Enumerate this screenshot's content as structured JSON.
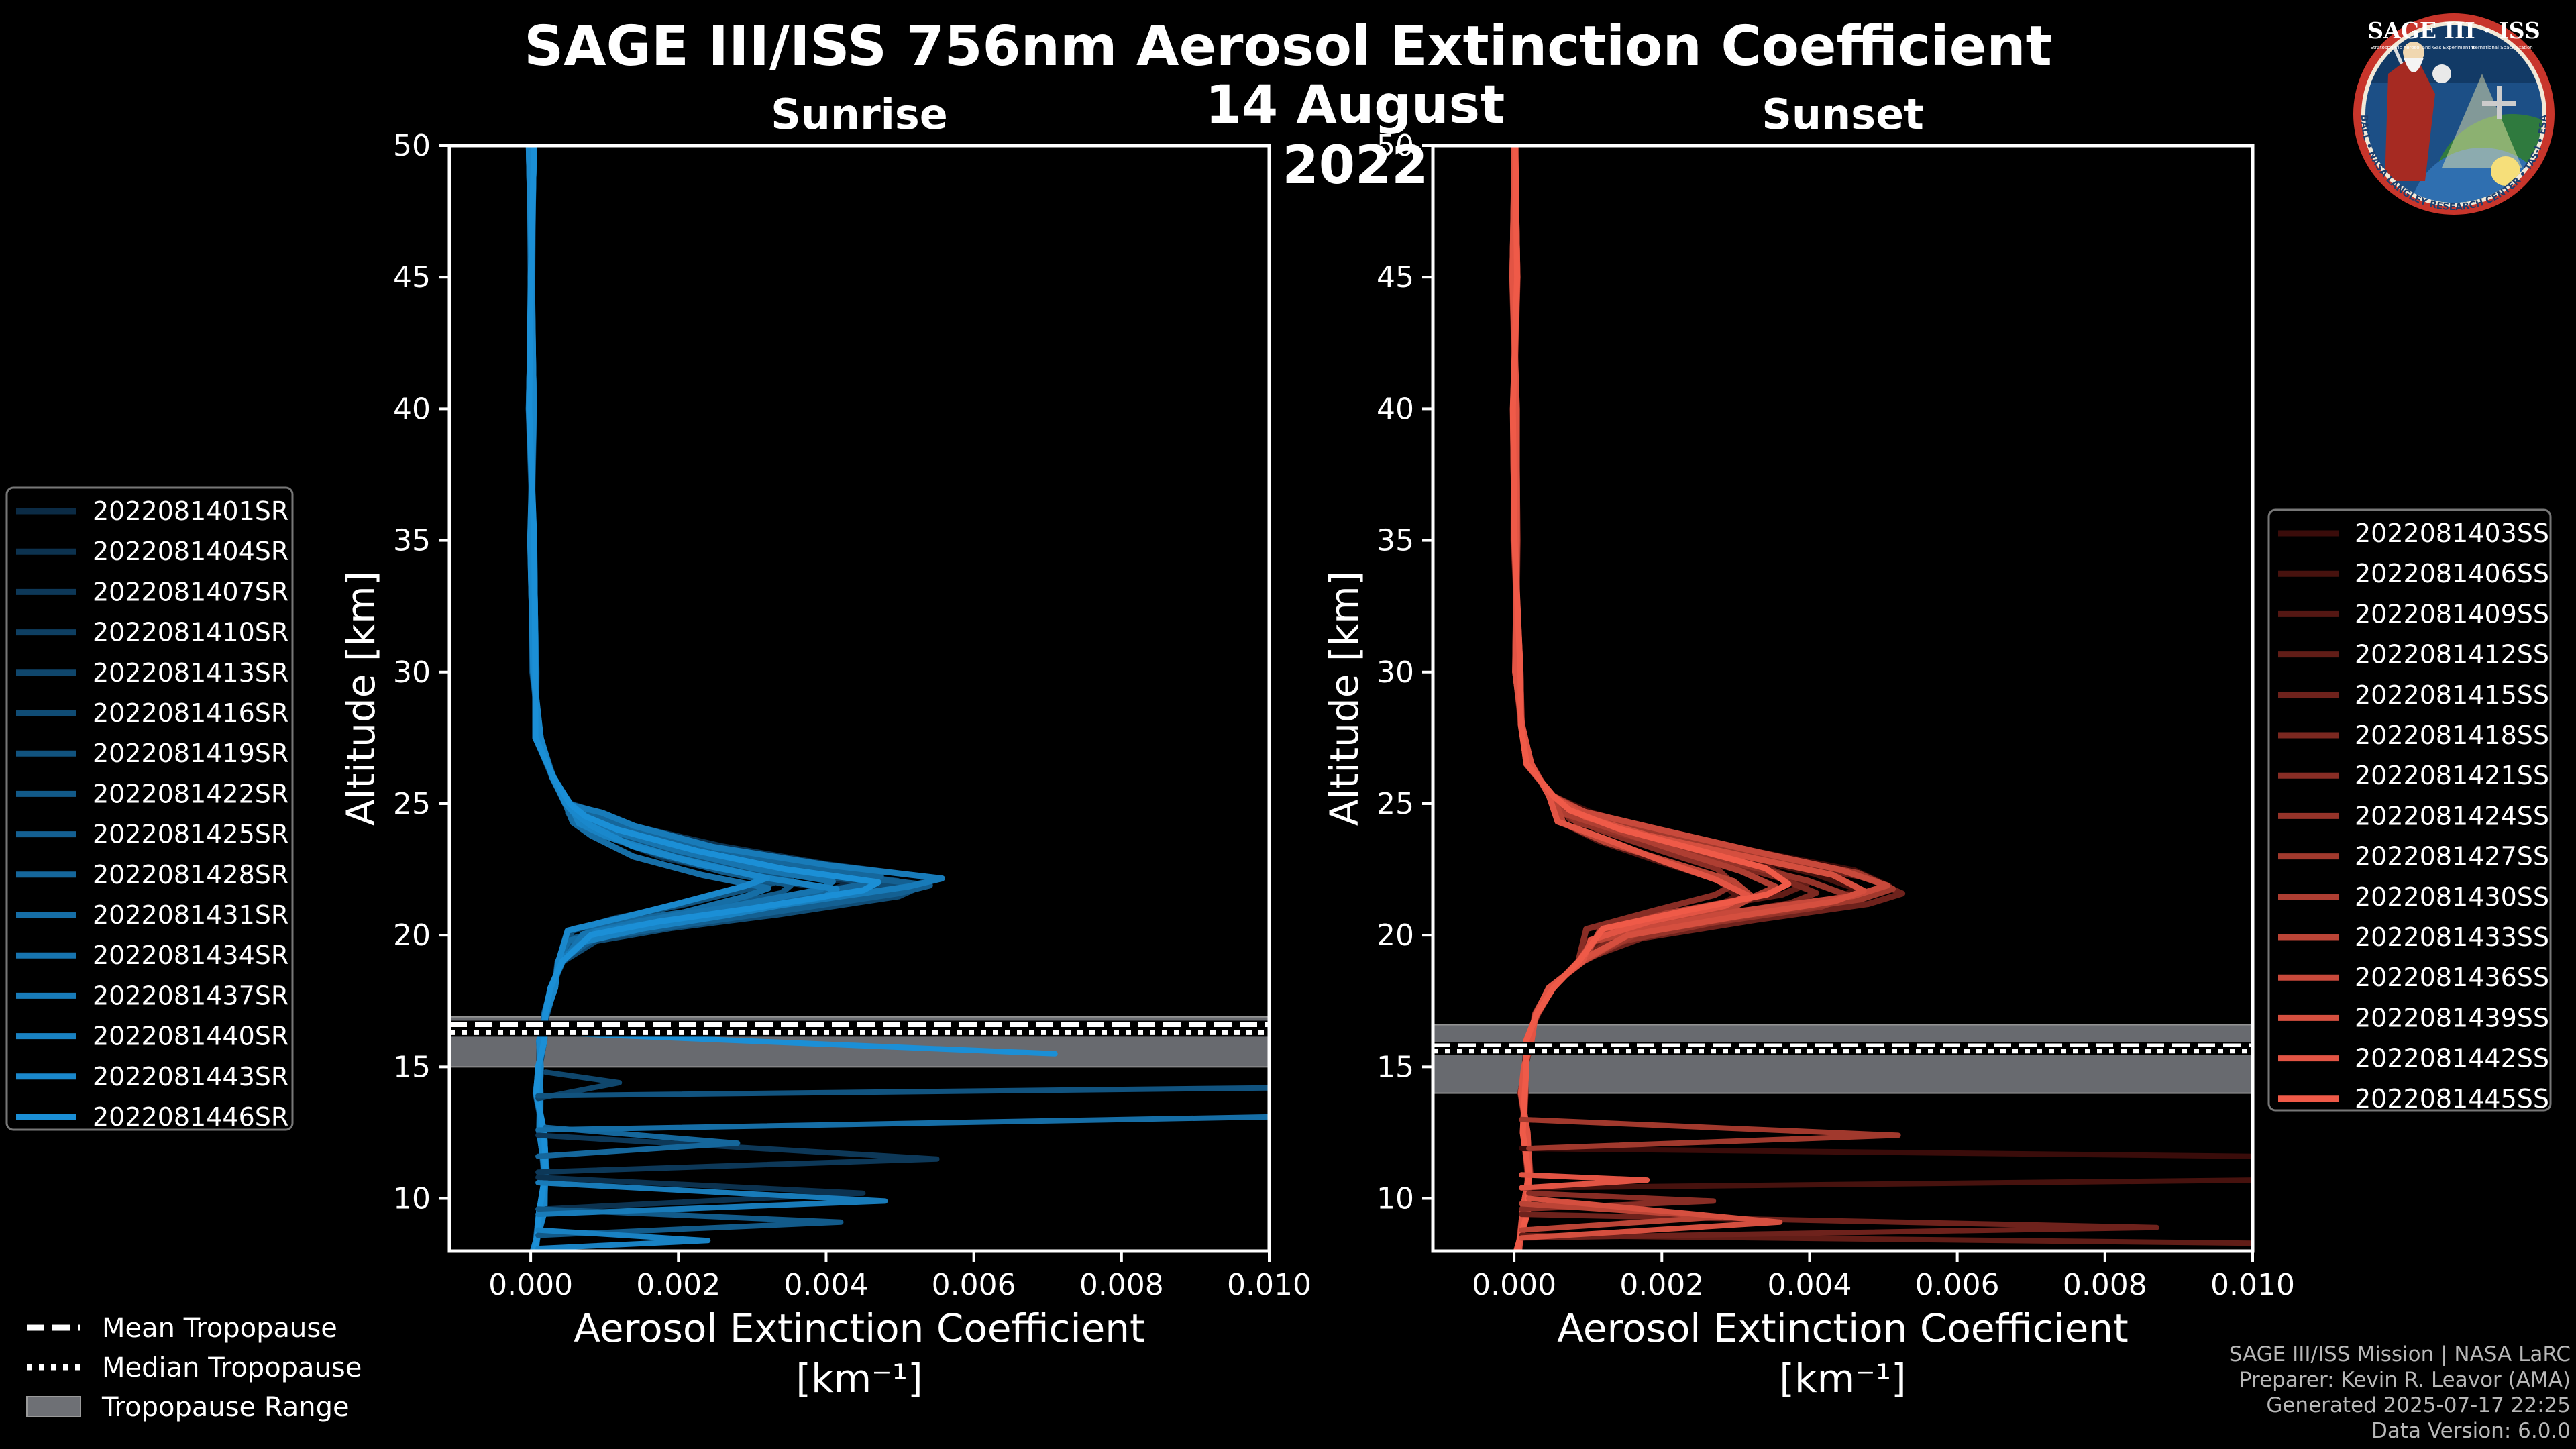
{
  "title": "SAGE III/ISS 756nm Aerosol Extinction Coefficient",
  "date": "14 August 2022",
  "badge": {
    "title": "SAGE III · ISS",
    "subtitle_left": "Stratospheric Aerosol and Gas Experiment III",
    "subtitle_right": "International Space Station",
    "ring_text": "BALL • NASA LANGLEY RESEARCH CENTER • TAS-I • ESA",
    "colors": {
      "border": "#c8352b",
      "inner": "#1c4f86",
      "sky": "#2f6fb0"
    }
  },
  "credits": [
    "SAGE III/ISS Mission | NASA LaRC",
    "Preparer: Kevin R. Leavor (AMA)",
    "Generated 2025-07-17 22:25",
    "Data Version: 6.0.0"
  ],
  "bottom_legend": [
    {
      "label": "Mean Tropopause",
      "style": "dashed"
    },
    {
      "label": "Median Tropopause",
      "style": "dotted"
    },
    {
      "label": "Tropopause Range",
      "style": "patch"
    }
  ],
  "chart_data": [
    {
      "type": "line",
      "title": "Sunrise",
      "xlabel": "Aerosol Extinction Coefficient",
      "xunit": "[km⁻¹]",
      "ylabel": "Altitude [km]",
      "xlim": [
        -0.0011,
        0.01
      ],
      "ylim": [
        8,
        50
      ],
      "xticks": [
        0.0,
        0.002,
        0.004,
        0.006,
        0.008,
        0.01
      ],
      "xtick_labels": [
        "0.000",
        "0.002",
        "0.004",
        "0.006",
        "0.008",
        "0.010"
      ],
      "yticks": [
        10,
        15,
        20,
        25,
        30,
        35,
        40,
        45,
        50
      ],
      "tropopause": {
        "mean": 16.6,
        "median": 16.3,
        "range": [
          15.0,
          16.9
        ]
      },
      "color_dark": "#0b2b45",
      "color_light": "#1b8fd6",
      "series": [
        {
          "name": "2022081401SR"
        },
        {
          "name": "2022081404SR"
        },
        {
          "name": "2022081407SR"
        },
        {
          "name": "2022081410SR"
        },
        {
          "name": "2022081413SR"
        },
        {
          "name": "2022081416SR"
        },
        {
          "name": "2022081419SR"
        },
        {
          "name": "2022081422SR"
        },
        {
          "name": "2022081425SR"
        },
        {
          "name": "2022081428SR"
        },
        {
          "name": "2022081431SR"
        },
        {
          "name": "2022081434SR"
        },
        {
          "name": "2022081437SR"
        },
        {
          "name": "2022081440SR"
        },
        {
          "name": "2022081443SR"
        },
        {
          "name": "2022081446SR"
        }
      ],
      "profile_template": [
        [
          5e-05,
          8.0
        ],
        [
          0.00015,
          9.5
        ],
        [
          0.0002,
          11.0
        ],
        [
          0.00015,
          12.5
        ],
        [
          0.0001,
          14.0
        ],
        [
          0.00012,
          15.0
        ],
        [
          0.00015,
          16.0
        ],
        [
          0.0002,
          17.0
        ],
        [
          0.0003,
          18.0
        ],
        [
          0.0004,
          19.0
        ],
        [
          0.0008,
          20.0
        ],
        [
          0.0018,
          20.5
        ],
        [
          0.003,
          21.0
        ],
        [
          0.0045,
          21.7
        ],
        [
          0.0048,
          22.0
        ],
        [
          0.0035,
          22.5
        ],
        [
          0.0022,
          23.2
        ],
        [
          0.0012,
          24.0
        ],
        [
          0.0008,
          24.5
        ],
        [
          0.0005,
          25.0
        ],
        [
          0.0003,
          26.0
        ],
        [
          0.0001,
          27.5
        ],
        [
          5e-05,
          30.0
        ],
        [
          2e-05,
          35.0
        ],
        [
          1e-05,
          40.0
        ],
        [
          1e-05,
          45.0
        ],
        [
          1e-05,
          50.0
        ]
      ],
      "spikes": [
        {
          "series": 1,
          "points": [
            [
              0.0001,
              10.8
            ],
            [
              0.0045,
              10.2
            ],
            [
              0.0002,
              9.6
            ]
          ]
        },
        {
          "series": 2,
          "points": [
            [
              0.0001,
              12.4
            ],
            [
              0.0055,
              11.5
            ],
            [
              0.0001,
              11.0
            ]
          ]
        },
        {
          "series": 4,
          "points": [
            [
              0.0002,
              14.8
            ],
            [
              0.0012,
              14.4
            ],
            [
              0.0001,
              13.8
            ]
          ]
        },
        {
          "series": 6,
          "points": [
            [
              0.0001,
              13.9
            ],
            [
              0.01,
              14.2
            ]
          ]
        },
        {
          "series": 7,
          "points": [
            [
              0.0001,
              9.6
            ],
            [
              0.0042,
              9.1
            ],
            [
              0.0001,
              8.6
            ]
          ]
        },
        {
          "series": 9,
          "points": [
            [
              0.0002,
              12.7
            ],
            [
              0.0028,
              12.1
            ],
            [
              0.0001,
              11.6
            ]
          ]
        },
        {
          "series": 10,
          "points": [
            [
              0.0001,
              12.6
            ],
            [
              0.01,
              13.1
            ]
          ]
        },
        {
          "series": 12,
          "points": [
            [
              0.0001,
              10.6
            ],
            [
              0.0048,
              9.9
            ],
            [
              0.0001,
              9.4
            ]
          ]
        },
        {
          "series": 13,
          "points": [
            [
              0.0001,
              8.8
            ],
            [
              0.0024,
              8.4
            ],
            [
              0.0001,
              8.1
            ]
          ]
        },
        {
          "series": 15,
          "points": [
            [
              0.0002,
              16.3
            ],
            [
              0.0071,
              15.5
            ]
          ]
        }
      ]
    },
    {
      "type": "line",
      "title": "Sunset",
      "xlabel": "Aerosol Extinction Coefficient",
      "xunit": "[km⁻¹]",
      "ylabel": "Altitude [km]",
      "xlim": [
        -0.0011,
        0.01
      ],
      "ylim": [
        8,
        50
      ],
      "xticks": [
        0.0,
        0.002,
        0.004,
        0.006,
        0.008,
        0.01
      ],
      "xtick_labels": [
        "0.000",
        "0.002",
        "0.004",
        "0.006",
        "0.008",
        "0.010"
      ],
      "yticks": [
        10,
        15,
        20,
        25,
        30,
        35,
        40,
        45,
        50
      ],
      "tropopause": {
        "mean": 15.8,
        "median": 15.6,
        "range": [
          14.0,
          16.6
        ]
      },
      "color_dark": "#3a0c0a",
      "color_light": "#ef5a48",
      "series": [
        {
          "name": "2022081403SS"
        },
        {
          "name": "2022081406SS"
        },
        {
          "name": "2022081409SS"
        },
        {
          "name": "2022081412SS"
        },
        {
          "name": "2022081415SS"
        },
        {
          "name": "2022081418SS"
        },
        {
          "name": "2022081421SS"
        },
        {
          "name": "2022081424SS"
        },
        {
          "name": "2022081427SS"
        },
        {
          "name": "2022081430SS"
        },
        {
          "name": "2022081433SS"
        },
        {
          "name": "2022081436SS"
        },
        {
          "name": "2022081439SS"
        },
        {
          "name": "2022081442SS"
        },
        {
          "name": "2022081445SS"
        }
      ],
      "profile_template": [
        [
          5e-05,
          8.0
        ],
        [
          0.00015,
          9.5
        ],
        [
          0.0002,
          11.0
        ],
        [
          0.00015,
          12.5
        ],
        [
          0.00012,
          14.0
        ],
        [
          0.00015,
          15.0
        ],
        [
          0.0002,
          16.0
        ],
        [
          0.0003,
          17.0
        ],
        [
          0.0005,
          18.0
        ],
        [
          0.0009,
          19.0
        ],
        [
          0.0015,
          20.0
        ],
        [
          0.0028,
          20.7
        ],
        [
          0.0042,
          21.3
        ],
        [
          0.0046,
          21.7
        ],
        [
          0.0041,
          22.3
        ],
        [
          0.003,
          23.0
        ],
        [
          0.0018,
          23.8
        ],
        [
          0.0009,
          24.5
        ],
        [
          0.0005,
          25.3
        ],
        [
          0.0002,
          26.5
        ],
        [
          0.0001,
          28.0
        ],
        [
          5e-05,
          30.0
        ],
        [
          2e-05,
          35.0
        ],
        [
          1e-05,
          40.0
        ],
        [
          1e-05,
          45.0
        ],
        [
          1e-05,
          50.0
        ]
      ],
      "spikes": [
        {
          "series": 0,
          "points": [
            [
              0.0001,
              11.9
            ],
            [
              0.01,
              11.6
            ]
          ]
        },
        {
          "series": 1,
          "points": [
            [
              0.0001,
              10.4
            ],
            [
              0.01,
              10.7
            ]
          ]
        },
        {
          "series": 3,
          "points": [
            [
              0.0001,
              8.6
            ],
            [
              0.01,
              8.3
            ]
          ]
        },
        {
          "series": 4,
          "points": [
            [
              0.0001,
              9.4
            ],
            [
              0.0087,
              8.9
            ],
            [
              0.0001,
              8.5
            ]
          ]
        },
        {
          "series": 6,
          "points": [
            [
              0.0002,
              10.2
            ],
            [
              0.0027,
              9.9
            ],
            [
              0.0001,
              9.6
            ]
          ]
        },
        {
          "series": 8,
          "points": [
            [
              0.0001,
              13.0
            ],
            [
              0.0052,
              12.4
            ],
            [
              0.0002,
              11.9
            ]
          ]
        },
        {
          "series": 10,
          "points": [
            [
              0.0001,
              9.8
            ],
            [
              0.0028,
              9.3
            ],
            [
              0.0001,
              8.8
            ]
          ]
        },
        {
          "series": 12,
          "points": [
            [
              0.0002,
              10.0
            ],
            [
              0.0036,
              9.1
            ],
            [
              0.0001,
              8.5
            ]
          ]
        },
        {
          "series": 13,
          "points": [
            [
              0.0001,
              10.9
            ],
            [
              0.0018,
              10.7
            ],
            [
              0.0001,
              10.4
            ]
          ]
        }
      ]
    }
  ]
}
